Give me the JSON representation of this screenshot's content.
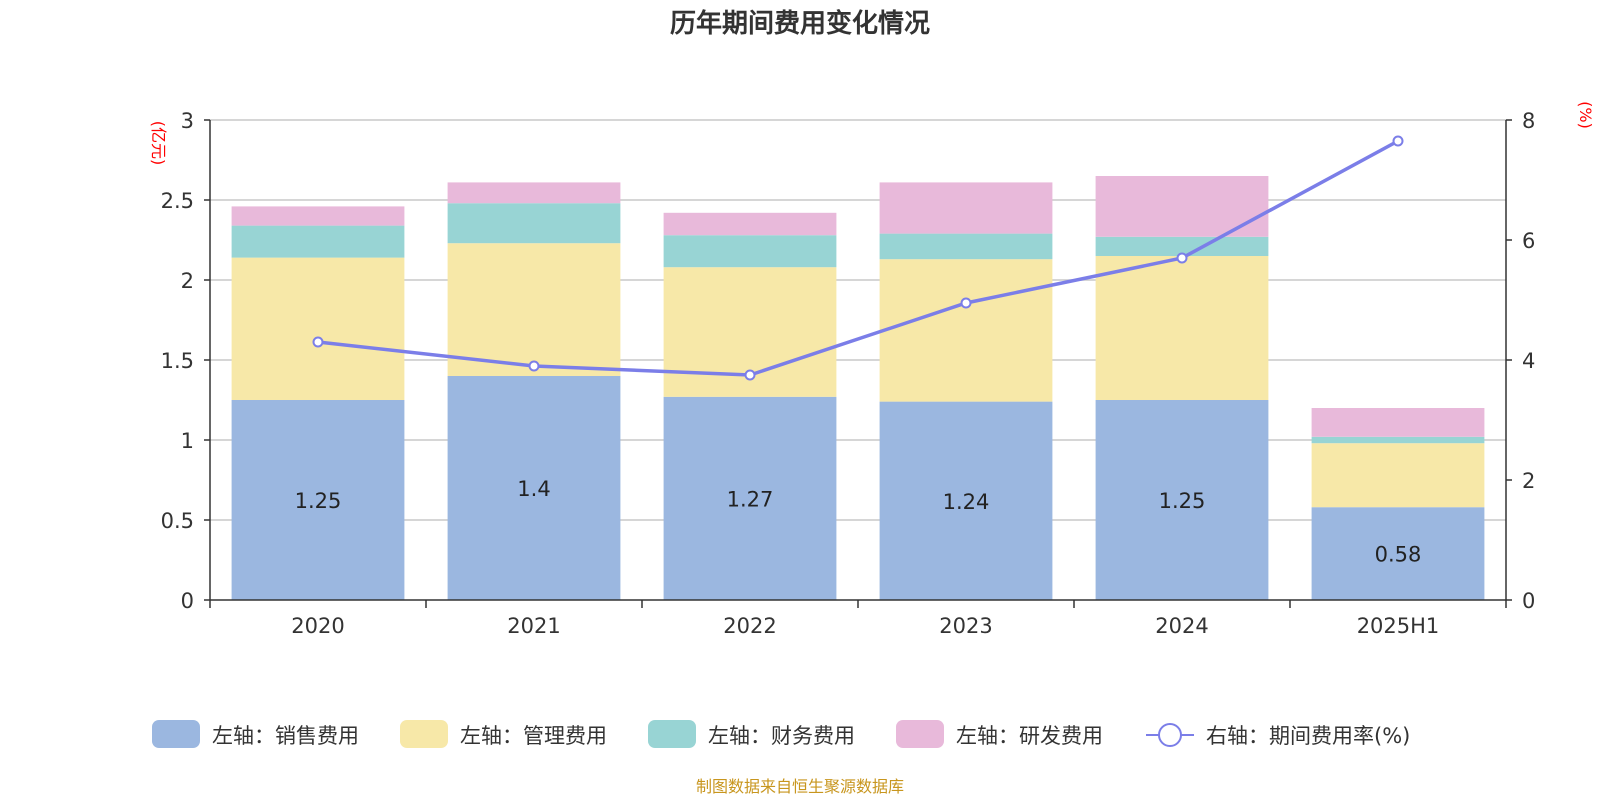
{
  "title": "历年期间费用变化情况",
  "source": "制图数据来自恒生聚源数据库",
  "chart_data": {
    "type": "bar",
    "stacked": true,
    "categories": [
      "2020",
      "2021",
      "2022",
      "2023",
      "2024",
      "2025H1"
    ],
    "left_axis": {
      "unit": "(亿元)",
      "ylim": [
        0,
        3
      ],
      "ticks": [
        "0",
        "0.5",
        "1",
        "1.5",
        "2",
        "2.5",
        "3"
      ]
    },
    "right_axis": {
      "unit": "(%)",
      "ylim": [
        0,
        8
      ],
      "ticks": [
        "0",
        "2",
        "4",
        "6",
        "8"
      ]
    },
    "grid": true,
    "legend_position": "bottom",
    "series": [
      {
        "name": "左轴：销售费用",
        "axis": "left",
        "type": "bar",
        "color": "#9bb7e0",
        "values": [
          1.25,
          1.4,
          1.27,
          1.24,
          1.25,
          0.58
        ],
        "labels": [
          "1.25",
          "1.4",
          "1.27",
          "1.24",
          "1.25",
          "0.58"
        ]
      },
      {
        "name": "左轴：管理费用",
        "axis": "left",
        "type": "bar",
        "color": "#f7e8a8",
        "values": [
          0.89,
          0.83,
          0.81,
          0.89,
          0.9,
          0.4
        ]
      },
      {
        "name": "左轴：财务费用",
        "axis": "left",
        "type": "bar",
        "color": "#98d4d4",
        "values": [
          0.2,
          0.25,
          0.2,
          0.16,
          0.12,
          0.04
        ]
      },
      {
        "name": "左轴：研发费用",
        "axis": "left",
        "type": "bar",
        "color": "#e8b9da",
        "values": [
          0.12,
          0.13,
          0.14,
          0.32,
          0.38,
          0.18
        ]
      },
      {
        "name": "右轴：期间费用率(%)",
        "axis": "right",
        "type": "line",
        "color": "#7b7ee8",
        "values": [
          4.3,
          3.9,
          3.75,
          4.95,
          5.7,
          7.65
        ]
      }
    ]
  }
}
